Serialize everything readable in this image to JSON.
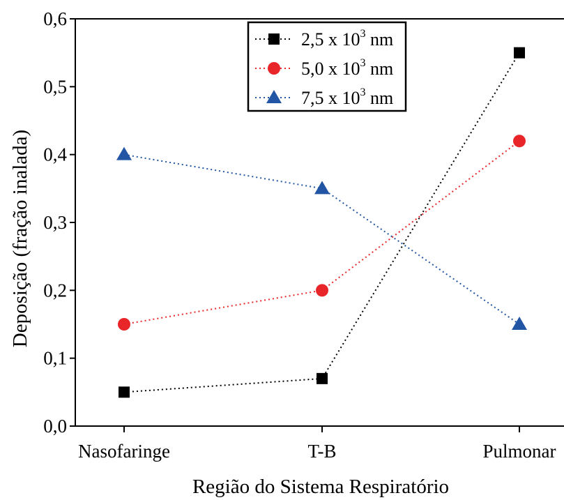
{
  "chart_data": {
    "type": "line",
    "title": "",
    "xlabel": "Região do Sistema Respiratório",
    "ylabel": "Deposição (fração inalada)",
    "categories": [
      "Nasofaringe",
      "T-B",
      "Pulmonar"
    ],
    "ylim": [
      0,
      0.6
    ],
    "yticks": [
      0.0,
      0.1,
      0.2,
      0.3,
      0.4,
      0.5,
      0.6
    ],
    "ytick_labels": [
      "0,0",
      "0,1",
      "0,2",
      "0,3",
      "0,4",
      "0,5",
      "0,6"
    ],
    "grid": false,
    "legend_position": "top-center",
    "series": [
      {
        "legend_base": "2,5 x 10",
        "legend_exp": "3",
        "legend_unit": " nm",
        "values": [
          0.05,
          0.07,
          0.55
        ],
        "color": "#000000",
        "marker": "square",
        "line_style": "dotted"
      },
      {
        "legend_base": "5,0 x 10",
        "legend_exp": "3",
        "legend_unit": " nm",
        "values": [
          0.15,
          0.2,
          0.42
        ],
        "color": "#e8262a",
        "marker": "circle",
        "line_style": "dotted"
      },
      {
        "legend_base": "7,5 x 10",
        "legend_exp": "3",
        "legend_unit": " nm",
        "values": [
          0.4,
          0.35,
          0.15
        ],
        "color": "#2255a4",
        "marker": "triangle",
        "line_style": "dotted"
      }
    ]
  }
}
